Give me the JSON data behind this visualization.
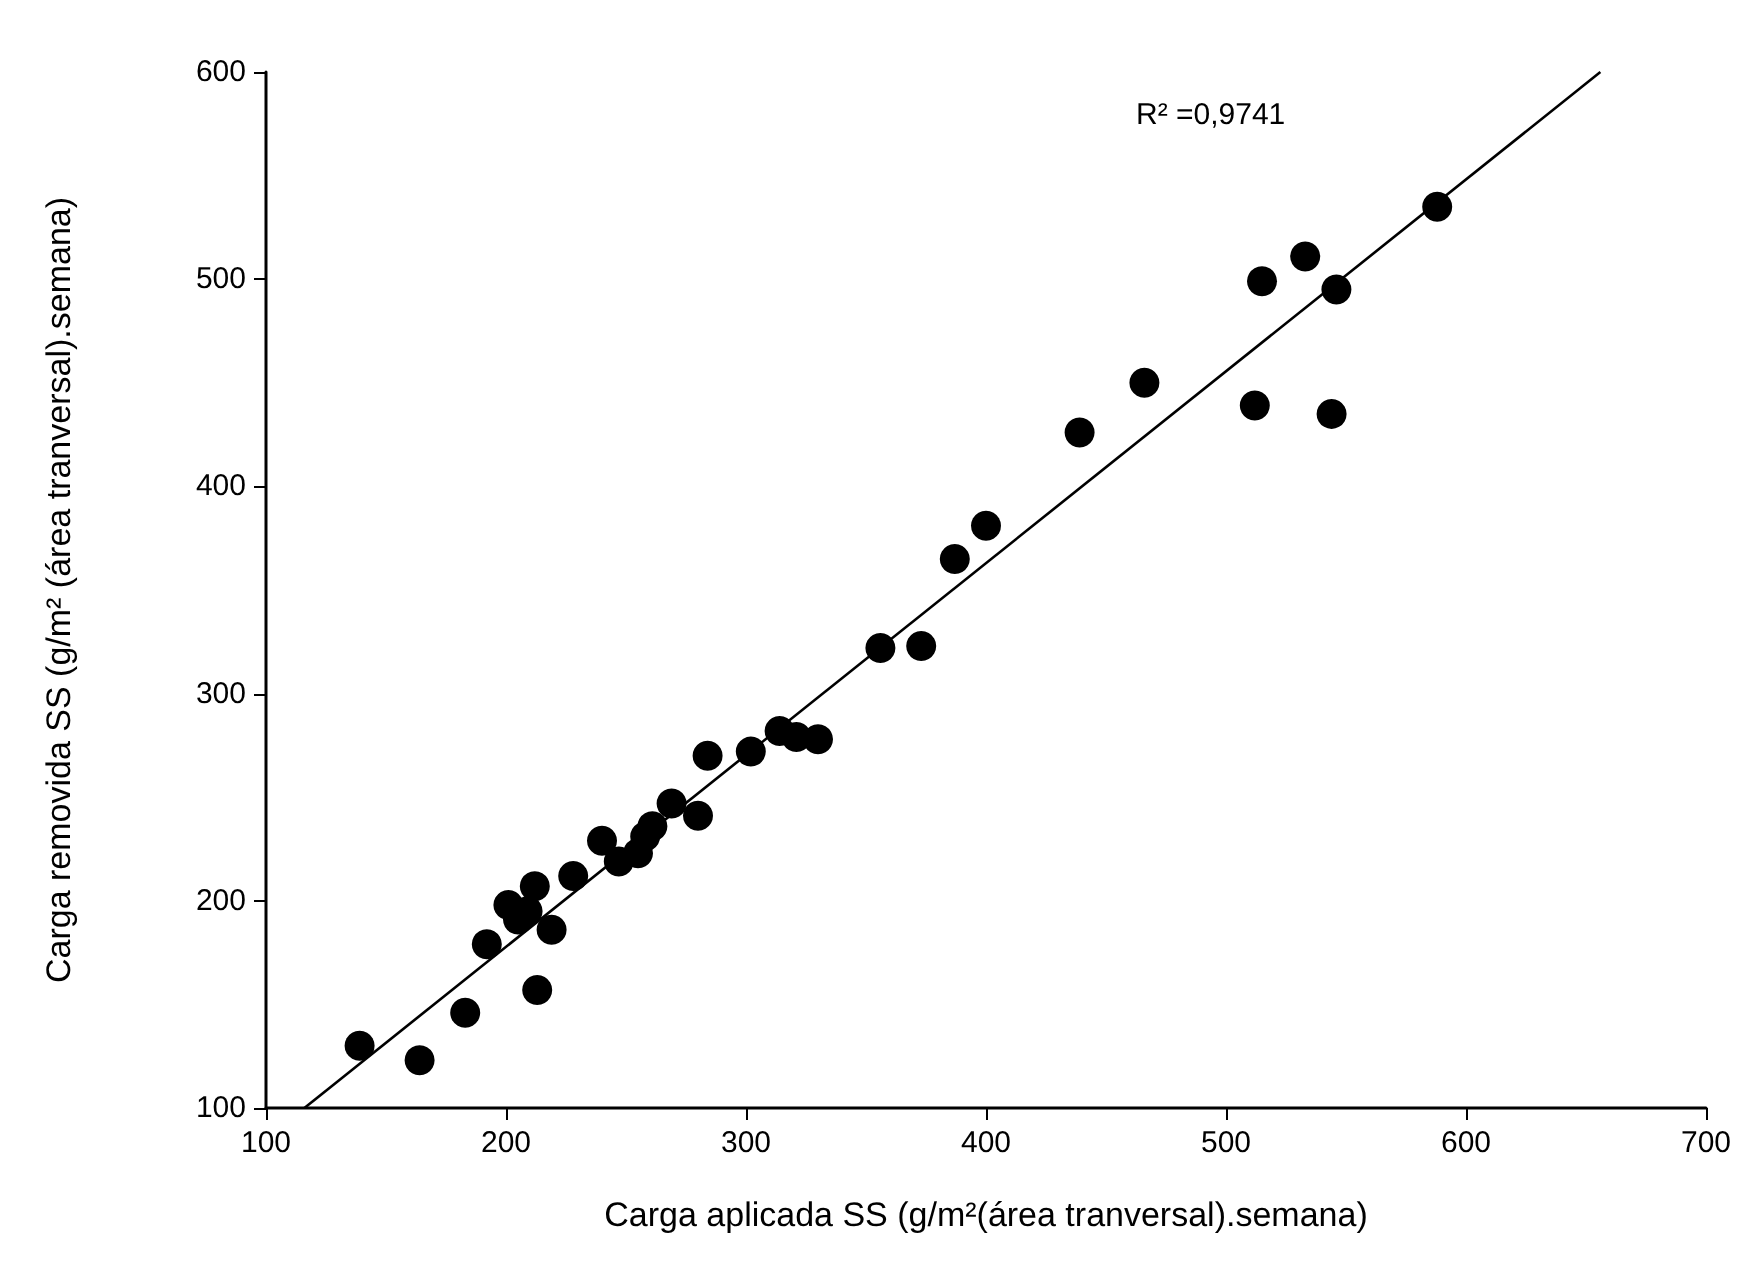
{
  "chart_data": {
    "type": "scatter",
    "xlabel": "Carga aplicada SS (g/m²(área tranversal).semana)",
    "ylabel": "Carga removida SS (g/m² (área tranversal).semana)",
    "annotations": [
      "R² =0,9741"
    ],
    "xlim": [
      100,
      700
    ],
    "xticks": [
      100,
      200,
      300,
      400,
      500,
      600,
      700
    ],
    "ylim": [
      100,
      600
    ],
    "yticks": [
      100,
      200,
      300,
      400,
      500,
      600
    ],
    "grid": false,
    "marker": "circle",
    "series": [
      {
        "color": "#000000",
        "x": [
          139,
          164,
          183,
          192,
          213,
          201,
          205,
          209,
          212,
          219,
          228,
          240,
          247,
          255,
          258,
          261,
          269,
          280,
          284,
          302,
          314,
          321,
          330,
          356,
          373,
          387,
          400,
          439,
          466,
          512,
          515,
          533,
          546,
          544,
          588
        ],
        "values": [
          130,
          123,
          146,
          179,
          157,
          198,
          191,
          195,
          207,
          186,
          212,
          229,
          219,
          223,
          231,
          236,
          247,
          241,
          270,
          272,
          282,
          279,
          278,
          322,
          323,
          365,
          381,
          426,
          450,
          439,
          499,
          511,
          495,
          435,
          535
        ]
      },
      {
        "type": "line",
        "color": "#000000",
        "marker": "none",
        "line_style": "solid",
        "x": [
          116,
          656
        ],
        "values": [
          100,
          600
        ]
      }
    ]
  }
}
